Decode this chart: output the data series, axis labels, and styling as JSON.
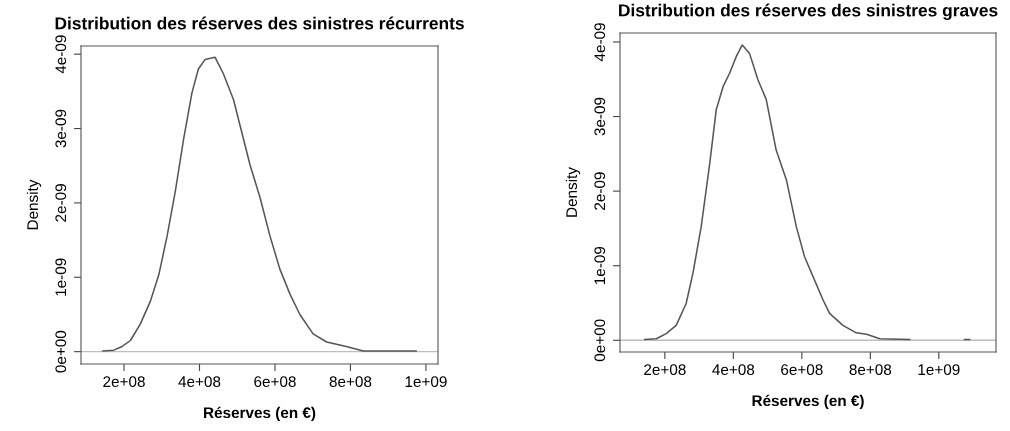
{
  "chart_data": [
    {
      "type": "line",
      "title": "Distribution des réserves des sinistres récurrents",
      "xlabel": "Réserves (en €)",
      "ylabel": "Density",
      "x": [
        144000000.0,
        173000000.0,
        195000000.0,
        217000000.0,
        243000000.0,
        270000000.0,
        292000000.0,
        314000000.0,
        336000000.0,
        358000000.0,
        380000000.0,
        397000000.0,
        415000000.0,
        441000000.0,
        463000000.0,
        490000000.0,
        512000000.0,
        534000000.0,
        560000000.0,
        587000000.0,
        613000000.0,
        640000000.0,
        666000000.0,
        701000000.0,
        737000000.0,
        789000000.0,
        834000000.0,
        886000000.0,
        974000000.0
      ],
      "series": [
        {
          "color": "#555555",
          "values": [
            1e-11,
            2e-11,
            7e-11,
            1.5e-10,
            3.7e-10,
            6.8e-10,
            1.03e-09,
            1.55e-09,
            2.16e-09,
            2.86e-09,
            3.48e-09,
            3.8e-09,
            3.93e-09,
            3.96e-09,
            3.74e-09,
            3.39e-09,
            2.95e-09,
            2.51e-09,
            2.08e-09,
            1.55e-09,
            1.11e-09,
            7.7e-10,
            5e-10,
            2.4e-10,
            1.3e-10,
            7e-11,
            1e-11,
            1e-11,
            1e-11
          ]
        }
      ],
      "xlim": [
        86000000.0,
        1032000000.0
      ],
      "ylim": [
        -1.66e-10,
        4.11e-09
      ],
      "xticks": [
        {
          "value": 200000000.0,
          "label": "2e+08"
        },
        {
          "value": 400000000.0,
          "label": "4e+08"
        },
        {
          "value": 600000000.0,
          "label": "6e+08"
        },
        {
          "value": 800000000.0,
          "label": "8e+08"
        },
        {
          "value": 1000000000.0,
          "label": "1e+09"
        }
      ],
      "yticks": [
        {
          "value": 0,
          "label": "0e+00"
        },
        {
          "value": 1e-09,
          "label": "1e-09"
        },
        {
          "value": 2e-09,
          "label": "2e-09"
        },
        {
          "value": 3e-09,
          "label": "3e-09"
        },
        {
          "value": 4e-09,
          "label": "4e-09"
        }
      ],
      "ref_lines": [
        {
          "axis": "y",
          "value": 0,
          "color": "#bebebe"
        }
      ],
      "grid": false,
      "legend": false,
      "marker": "none",
      "line_style": "solid"
    },
    {
      "type": "line",
      "title": "Distribution des réserves des sinistres graves",
      "xlabel": "Réserves (en €)",
      "ylabel": "Density",
      "x": [
        141000000.0,
        175000000.0,
        204000000.0,
        233000000.0,
        262000000.0,
        282000000.0,
        306000000.0,
        331000000.0,
        350000000.0,
        370000000.0,
        389000000.0,
        409000000.0,
        426000000.0,
        447000000.0,
        472000000.0,
        496000000.0,
        525000000.0,
        555000000.0,
        584000000.0,
        608000000.0,
        633000000.0,
        662000000.0,
        681000000.0,
        720000000.0,
        759000000.0,
        789000000.0,
        828000000.0,
        915000000.0,
        1000000000.0,
        1075000000.0,
        1090000000.0
      ],
      "series": [
        {
          "color": "#555555",
          "values": [
            1e-11,
            2e-11,
            9e-11,
            2e-10,
            4.9e-10,
            9e-10,
            1.52e-09,
            2.37e-09,
            3.09e-09,
            3.4e-09,
            3.58e-09,
            3.81e-09,
            3.96e-09,
            3.85e-09,
            3.49e-09,
            3.23e-09,
            2.55e-09,
            2.15e-09,
            1.52e-09,
            1.12e-09,
            8.5e-10,
            5.4e-10,
            3.6e-10,
            2e-10,
            1e-10,
            8e-11,
            2e-11,
            1e-11,
            null,
            1e-11,
            1e-11
          ]
        }
      ],
      "xlim": [
        69000000.0,
        1167000000.0
      ],
      "ylim": [
        -1.57e-10,
        4.12e-09
      ],
      "xticks": [
        {
          "value": 200000000.0,
          "label": "2e+08"
        },
        {
          "value": 400000000.0,
          "label": "4e+08"
        },
        {
          "value": 600000000.0,
          "label": "6e+08"
        },
        {
          "value": 800000000.0,
          "label": "8e+08"
        },
        {
          "value": 1000000000.0,
          "label": "1e+09"
        }
      ],
      "yticks": [
        {
          "value": 0,
          "label": "0e+00"
        },
        {
          "value": 1e-09,
          "label": "1e-09"
        },
        {
          "value": 2e-09,
          "label": "2e-09"
        },
        {
          "value": 3e-09,
          "label": "3e-09"
        },
        {
          "value": 4e-09,
          "label": "4e-09"
        }
      ],
      "ref_lines": [
        {
          "axis": "y",
          "value": 0,
          "color": "#bebebe"
        }
      ],
      "grid": false,
      "legend": false,
      "marker": "none",
      "line_style": "solid"
    }
  ]
}
